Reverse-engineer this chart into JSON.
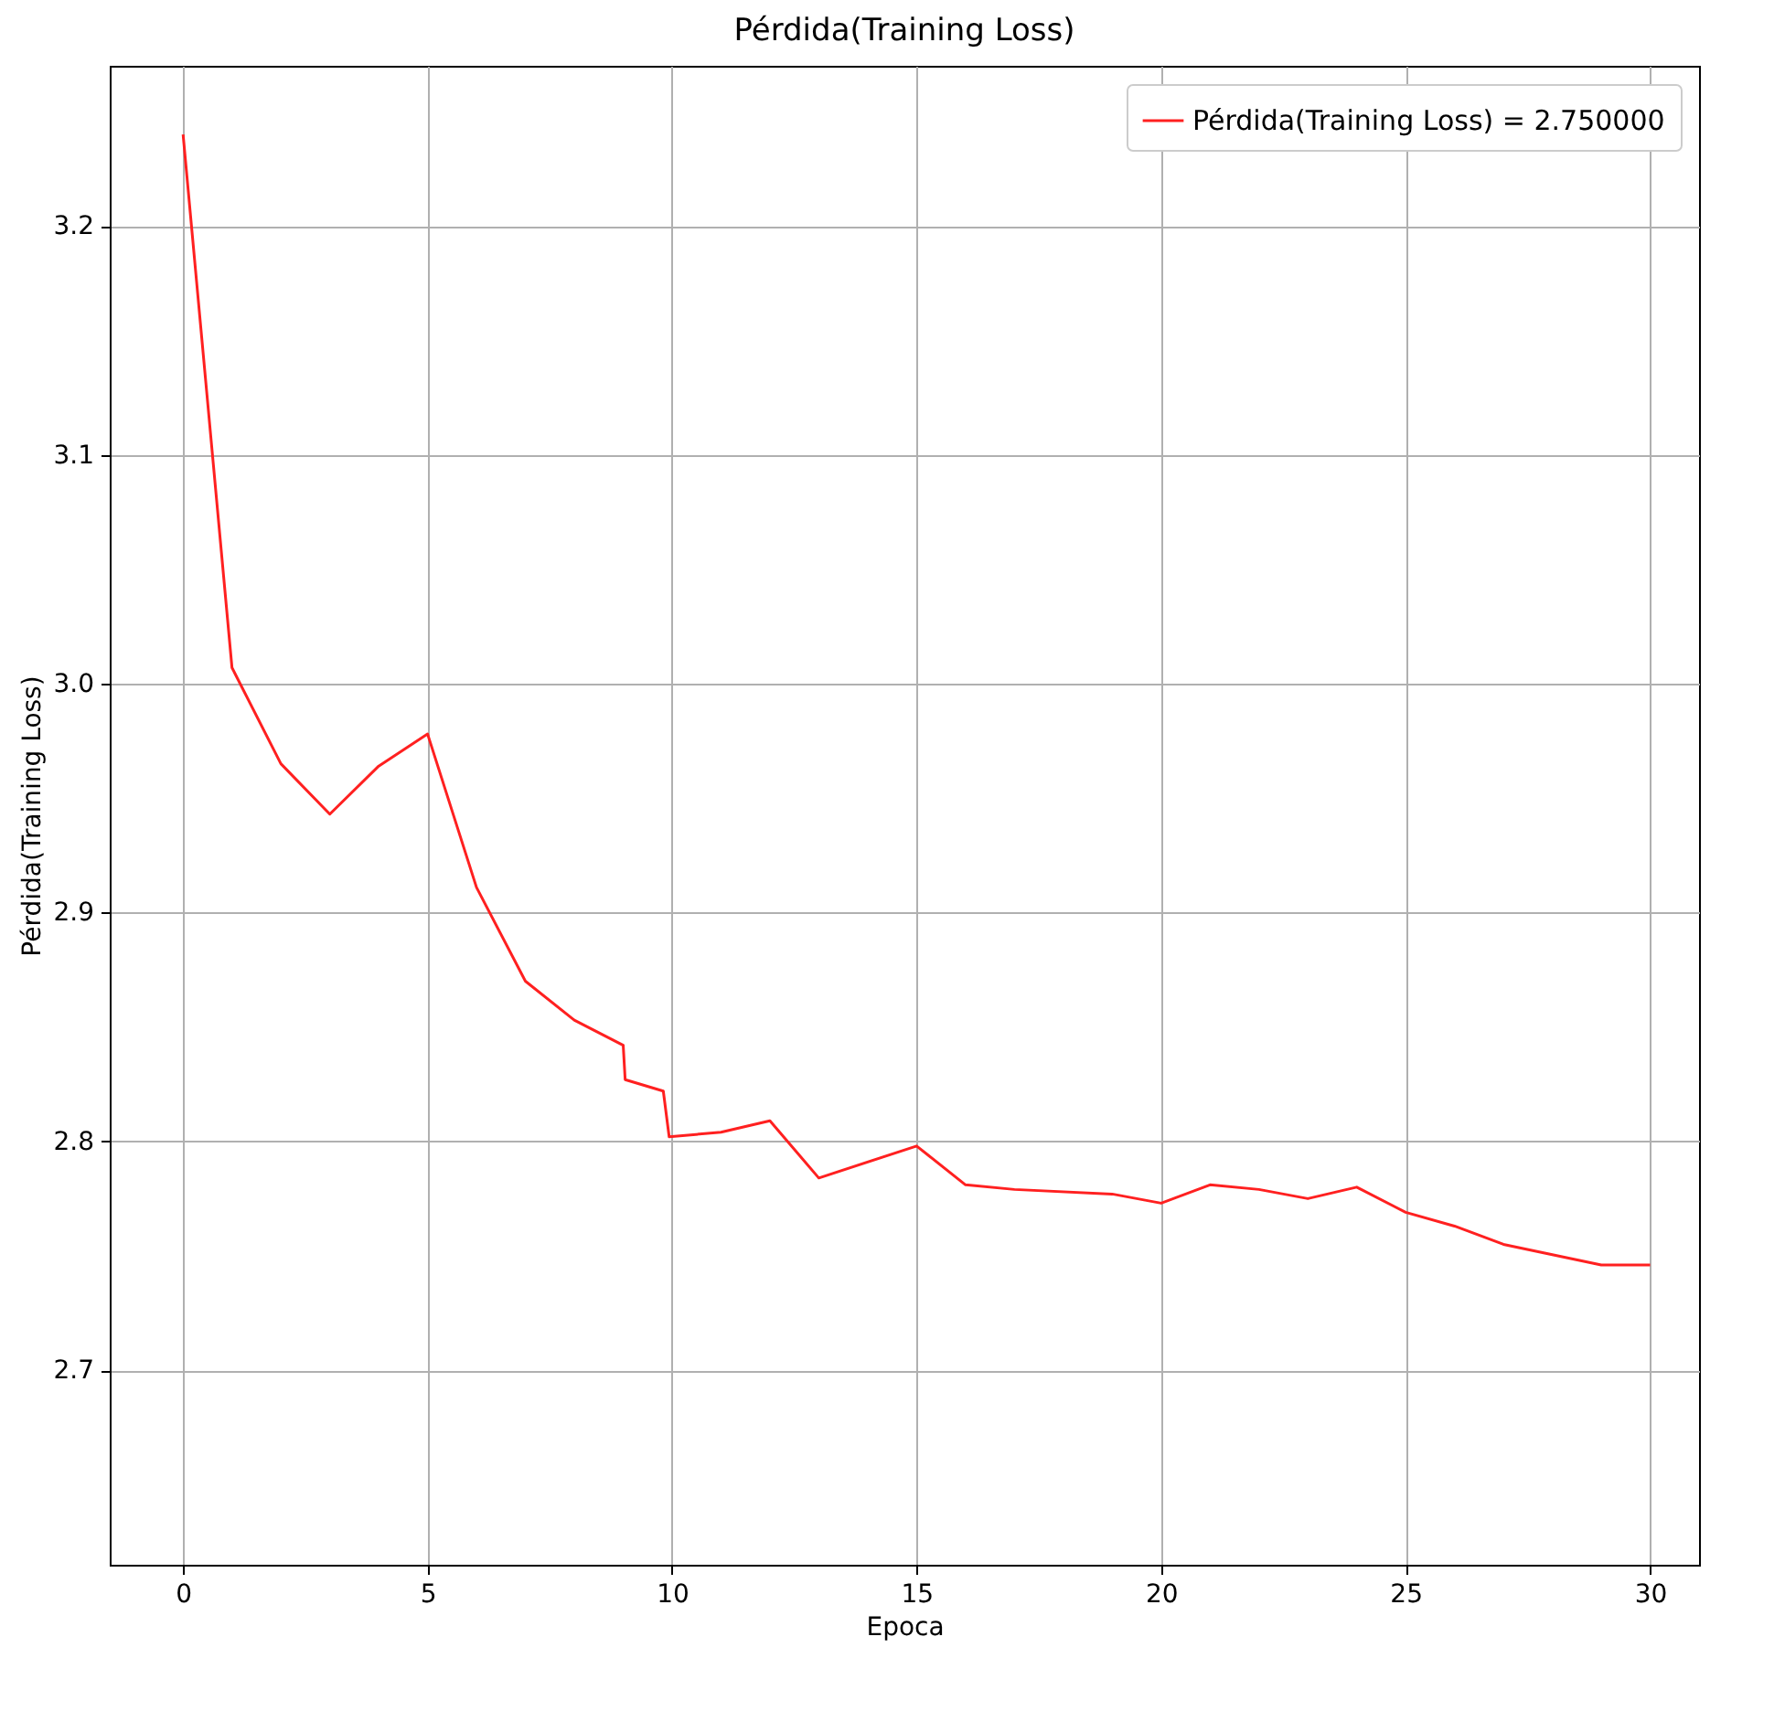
{
  "chart_data": {
    "type": "line",
    "title": "Pérdida(Training Loss)",
    "xlabel": "Epoca",
    "ylabel": "Pérdida(Training Loss)",
    "xlim": [
      -1.5,
      31
    ],
    "ylim": [
      2.615,
      3.27
    ],
    "xticks": [
      0,
      5,
      10,
      15,
      20,
      25,
      30
    ],
    "yticks": [
      2.7,
      2.8,
      2.9,
      {
        "value": 3,
        "label": "3.0"
      },
      3.1,
      3.2
    ],
    "grid": true,
    "legend": "top right",
    "line_style": "solid",
    "marker": "none",
    "series": [
      {
        "name": "Pérdida(Training Loss) = 2.750000",
        "color": "#ff2020",
        "x": [
          0,
          1,
          2,
          3,
          4,
          5,
          6,
          7,
          8,
          9,
          9.04,
          9.82,
          9.94,
          11,
          12,
          13,
          15,
          16,
          17,
          19,
          20,
          21,
          22,
          23,
          24,
          25,
          26,
          27,
          29,
          30
        ],
        "values": [
          3.24,
          3.007,
          2.965,
          2.943,
          2.964,
          2.978,
          2.911,
          2.87,
          2.853,
          2.842,
          2.827,
          2.822,
          2.802,
          2.804,
          2.809,
          2.784,
          2.798,
          2.781,
          2.779,
          2.777,
          2.773,
          2.781,
          2.779,
          2.775,
          2.78,
          2.769,
          2.763,
          2.755,
          2.746,
          2.746
        ]
      }
    ]
  }
}
